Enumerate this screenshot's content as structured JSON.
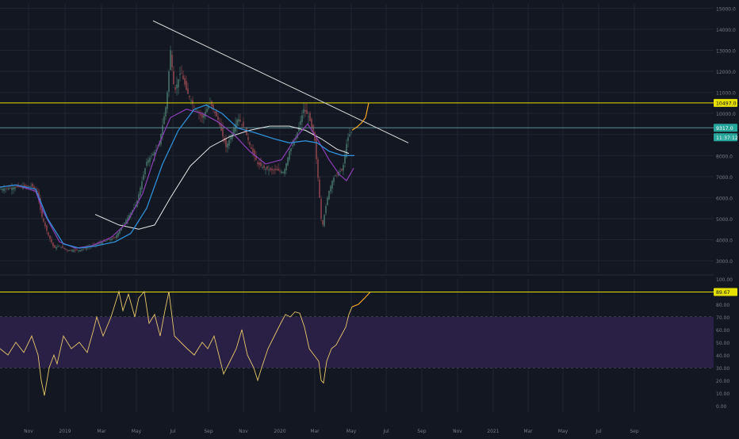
{
  "colors": {
    "background": "#131722",
    "grid": "#1f2433",
    "axis_text": "#787b86",
    "up_candle": "#4e7d74",
    "down_candle": "#9b4a52",
    "yellow_line": "#e5e000",
    "teal_line": "#5d8f96",
    "trendline": "#d8d8d8",
    "ma_blue": "#2e8fd6",
    "ma_purple": "#8c3fb6",
    "ma_white": "#e6e6e6",
    "projection": "#f5a623",
    "rsi_line": "#e8c86a",
    "rsi_band": "#2a1f45",
    "price_badge_yellow": "#e5e000",
    "price_badge_teal": "#26a69a"
  },
  "chart_data": [
    {
      "type": "candlestick",
      "title": "",
      "ylim": [
        2400,
        15200
      ],
      "y_ticks": [
        "3000.0",
        "4000.0",
        "5000.0",
        "6000.0",
        "7000.0",
        "8000.0",
        "9000.0",
        "10000.0",
        "11000.0",
        "12000.0",
        "13000.0",
        "14000.0",
        "15000.0"
      ],
      "x_ticks": [
        "Nov",
        "2019",
        "Mar",
        "May",
        "Jul",
        "Sep",
        "Nov",
        "2020",
        "Mar",
        "May",
        "Jul",
        "Sep",
        "Nov",
        "2021",
        "Mar",
        "May",
        "Jul",
        "Sep"
      ],
      "price_path": [
        [
          0,
          6400
        ],
        [
          20,
          6500
        ],
        [
          40,
          6550
        ],
        [
          47,
          6300
        ],
        [
          52,
          5200
        ],
        [
          60,
          4300
        ],
        [
          68,
          3600
        ],
        [
          75,
          3700
        ],
        [
          85,
          3500
        ],
        [
          100,
          3500
        ],
        [
          115,
          3700
        ],
        [
          130,
          3900
        ],
        [
          145,
          4100
        ],
        [
          160,
          5000
        ],
        [
          172,
          5700
        ],
        [
          185,
          7700
        ],
        [
          200,
          8400
        ],
        [
          210,
          10500
        ],
        [
          215,
          13000
        ],
        [
          220,
          11000
        ],
        [
          228,
          12000
        ],
        [
          236,
          11000
        ],
        [
          245,
          10300
        ],
        [
          255,
          9800
        ],
        [
          265,
          10500
        ],
        [
          275,
          9700
        ],
        [
          285,
          8400
        ],
        [
          292,
          9000
        ],
        [
          300,
          9800
        ],
        [
          308,
          9300
        ],
        [
          316,
          8400
        ],
        [
          325,
          7600
        ],
        [
          333,
          7400
        ],
        [
          342,
          7300
        ],
        [
          350,
          7300
        ],
        [
          358,
          7200
        ],
        [
          365,
          8200
        ],
        [
          372,
          8700
        ],
        [
          378,
          9500
        ],
        [
          383,
          10200
        ],
        [
          390,
          9800
        ],
        [
          397,
          8700
        ],
        [
          402,
          6500
        ],
        [
          406,
          4500
        ],
        [
          410,
          5400
        ],
        [
          414,
          6200
        ],
        [
          420,
          6900
        ],
        [
          426,
          7200
        ],
        [
          432,
          7300
        ],
        [
          438,
          8800
        ],
        [
          444,
          9200
        ]
      ],
      "horizontal_levels": [
        {
          "value": 10497.0,
          "label": "10497.0",
          "color": "#e5e000"
        },
        {
          "value": 9317.0,
          "label": "9317.0",
          "color": "#5d8f96",
          "sublabel": "11:37:12"
        }
      ],
      "trendline": {
        "from": [
          193,
          14400
        ],
        "to": [
          515,
          8600
        ]
      },
      "ma_blue": [
        [
          0,
          6500
        ],
        [
          20,
          6600
        ],
        [
          45,
          6400
        ],
        [
          60,
          5000
        ],
        [
          80,
          3800
        ],
        [
          100,
          3600
        ],
        [
          120,
          3700
        ],
        [
          145,
          3900
        ],
        [
          165,
          4300
        ],
        [
          185,
          5500
        ],
        [
          205,
          7600
        ],
        [
          225,
          9200
        ],
        [
          245,
          10200
        ],
        [
          260,
          10400
        ],
        [
          280,
          10000
        ],
        [
          300,
          9300
        ],
        [
          320,
          9100
        ],
        [
          345,
          8800
        ],
        [
          365,
          8600
        ],
        [
          385,
          8700
        ],
        [
          400,
          8600
        ],
        [
          415,
          8200
        ],
        [
          432,
          8000
        ],
        [
          447,
          8000
        ]
      ],
      "ma_purple": [
        [
          0,
          6500
        ],
        [
          20,
          6600
        ],
        [
          45,
          6300
        ],
        [
          55,
          5300
        ],
        [
          75,
          3900
        ],
        [
          95,
          3600
        ],
        [
          115,
          3700
        ],
        [
          140,
          4100
        ],
        [
          160,
          4800
        ],
        [
          180,
          6200
        ],
        [
          200,
          8500
        ],
        [
          215,
          9800
        ],
        [
          235,
          10200
        ],
        [
          255,
          10000
        ],
        [
          275,
          9600
        ],
        [
          295,
          9000
        ],
        [
          315,
          8200
        ],
        [
          335,
          7600
        ],
        [
          355,
          7800
        ],
        [
          372,
          8800
        ],
        [
          388,
          9500
        ],
        [
          400,
          8800
        ],
        [
          415,
          7800
        ],
        [
          428,
          7100
        ],
        [
          437,
          6800
        ],
        [
          446,
          7400
        ]
      ],
      "ma_white": [
        [
          120,
          5200
        ],
        [
          150,
          4700
        ],
        [
          175,
          4500
        ],
        [
          195,
          4700
        ],
        [
          215,
          6000
        ],
        [
          240,
          7500
        ],
        [
          265,
          8400
        ],
        [
          290,
          8900
        ],
        [
          315,
          9200
        ],
        [
          340,
          9400
        ],
        [
          365,
          9400
        ],
        [
          385,
          9200
        ],
        [
          405,
          8800
        ],
        [
          425,
          8300
        ],
        [
          440,
          8100
        ]
      ],
      "projection": [
        [
          444,
          9200
        ],
        [
          450,
          9350
        ],
        [
          456,
          9550
        ],
        [
          461,
          9800
        ],
        [
          465,
          10497
        ]
      ]
    },
    {
      "type": "line",
      "title": "",
      "ylim": [
        0,
        100
      ],
      "y_ticks": [
        "0.00",
        "10.00",
        "20.00",
        "30.00",
        "40.00",
        "50.00",
        "60.00",
        "70.00",
        "80.00",
        "90.00",
        "100.00"
      ],
      "band": [
        30,
        70
      ],
      "highlight_level": {
        "value": 89.67,
        "label": "89.67"
      },
      "rsi_path": [
        [
          0,
          45
        ],
        [
          10,
          40
        ],
        [
          20,
          50
        ],
        [
          30,
          42
        ],
        [
          40,
          55
        ],
        [
          48,
          40
        ],
        [
          52,
          20
        ],
        [
          56,
          8
        ],
        [
          62,
          30
        ],
        [
          68,
          40
        ],
        [
          72,
          33
        ],
        [
          80,
          55
        ],
        [
          90,
          45
        ],
        [
          100,
          50
        ],
        [
          110,
          42
        ],
        [
          118,
          60
        ],
        [
          122,
          70
        ],
        [
          130,
          55
        ],
        [
          140,
          70
        ],
        [
          150,
          90
        ],
        [
          155,
          75
        ],
        [
          162,
          88
        ],
        [
          170,
          70
        ],
        [
          175,
          85
        ],
        [
          182,
          90
        ],
        [
          188,
          65
        ],
        [
          195,
          72
        ],
        [
          202,
          55
        ],
        [
          208,
          75
        ],
        [
          213,
          90
        ],
        [
          220,
          55
        ],
        [
          228,
          50
        ],
        [
          236,
          45
        ],
        [
          245,
          40
        ],
        [
          255,
          50
        ],
        [
          262,
          45
        ],
        [
          270,
          55
        ],
        [
          276,
          40
        ],
        [
          282,
          25
        ],
        [
          290,
          35
        ],
        [
          298,
          45
        ],
        [
          305,
          60
        ],
        [
          312,
          40
        ],
        [
          320,
          30
        ],
        [
          325,
          20
        ],
        [
          330,
          30
        ],
        [
          338,
          45
        ],
        [
          346,
          55
        ],
        [
          354,
          65
        ],
        [
          360,
          72
        ],
        [
          366,
          70
        ],
        [
          372,
          74
        ],
        [
          378,
          73
        ],
        [
          384,
          62
        ],
        [
          390,
          45
        ],
        [
          396,
          40
        ],
        [
          402,
          35
        ],
        [
          405,
          20
        ],
        [
          408,
          18
        ],
        [
          412,
          35
        ],
        [
          418,
          45
        ],
        [
          424,
          48
        ],
        [
          430,
          55
        ],
        [
          436,
          62
        ],
        [
          440,
          72
        ],
        [
          444,
          78
        ]
      ],
      "projection": [
        [
          444,
          78
        ],
        [
          452,
          80
        ],
        [
          460,
          85
        ],
        [
          467,
          89.67
        ]
      ]
    }
  ]
}
